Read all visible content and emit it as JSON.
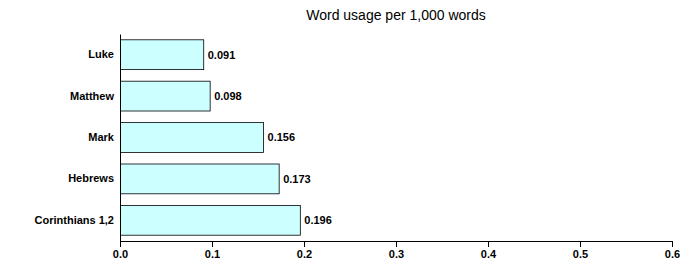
{
  "chart_data": {
    "type": "bar",
    "orientation": "horizontal",
    "title": "Word usage per 1,000 words",
    "categories": [
      "Corinthians 1,2",
      "Hebrews",
      "Mark",
      "Matthew",
      "Luke"
    ],
    "values": [
      0.196,
      0.173,
      0.156,
      0.098,
      0.091
    ],
    "color": "#ccffff",
    "xlim": [
      0.0,
      0.6
    ],
    "xticks": [
      {
        "value": 0.0,
        "label": "0.0"
      },
      0.1,
      0.2,
      0.3,
      0.4,
      0.5,
      0.6
    ],
    "grid": false,
    "data_labels": true
  }
}
